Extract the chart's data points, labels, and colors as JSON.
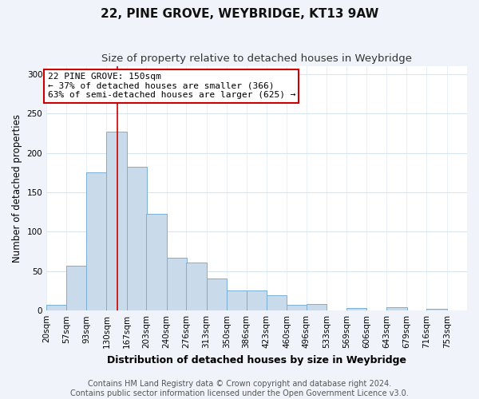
{
  "title": "22, PINE GROVE, WEYBRIDGE, KT13 9AW",
  "subtitle": "Size of property relative to detached houses in Weybridge",
  "xlabel": "Distribution of detached houses by size in Weybridge",
  "ylabel": "Number of detached properties",
  "bar_left_edges": [
    20,
    57,
    93,
    130,
    167,
    203,
    240,
    276,
    313,
    350,
    386,
    423,
    460,
    496,
    533,
    569,
    606,
    643,
    679,
    716
  ],
  "bar_heights": [
    7,
    57,
    175,
    227,
    182,
    123,
    67,
    61,
    41,
    25,
    25,
    19,
    7,
    8,
    0,
    3,
    0,
    4,
    0,
    2
  ],
  "bin_width": 37,
  "bar_color": "#c9daea",
  "bar_edge_color": "#7bafd4",
  "ylim": [
    0,
    310
  ],
  "yticks": [
    0,
    50,
    100,
    150,
    200,
    250,
    300
  ],
  "xtick_labels": [
    "20sqm",
    "57sqm",
    "93sqm",
    "130sqm",
    "167sqm",
    "203sqm",
    "240sqm",
    "276sqm",
    "313sqm",
    "350sqm",
    "386sqm",
    "423sqm",
    "460sqm",
    "496sqm",
    "533sqm",
    "569sqm",
    "606sqm",
    "643sqm",
    "679sqm",
    "716sqm",
    "753sqm"
  ],
  "annotation_title": "22 PINE GROVE: 150sqm",
  "annotation_line1": "← 37% of detached houses are smaller (366)",
  "annotation_line2": "63% of semi-detached houses are larger (625) →",
  "annotation_box_facecolor": "#ffffff",
  "annotation_box_edgecolor": "#cc0000",
  "vline_x": 150,
  "vline_color": "#cc0000",
  "footer_line1": "Contains HM Land Registry data © Crown copyright and database right 2024.",
  "footer_line2": "Contains public sector information licensed under the Open Government Licence v3.0.",
  "plot_bg_color": "#ffffff",
  "fig_bg_color": "#f0f4fa",
  "grid_color": "#d8e4f0",
  "title_fontsize": 11,
  "subtitle_fontsize": 9.5,
  "xlabel_fontsize": 9,
  "ylabel_fontsize": 8.5,
  "tick_fontsize": 7.5,
  "annotation_fontsize": 8,
  "footer_fontsize": 7,
  "xlim_left": 20,
  "xlim_right": 790
}
